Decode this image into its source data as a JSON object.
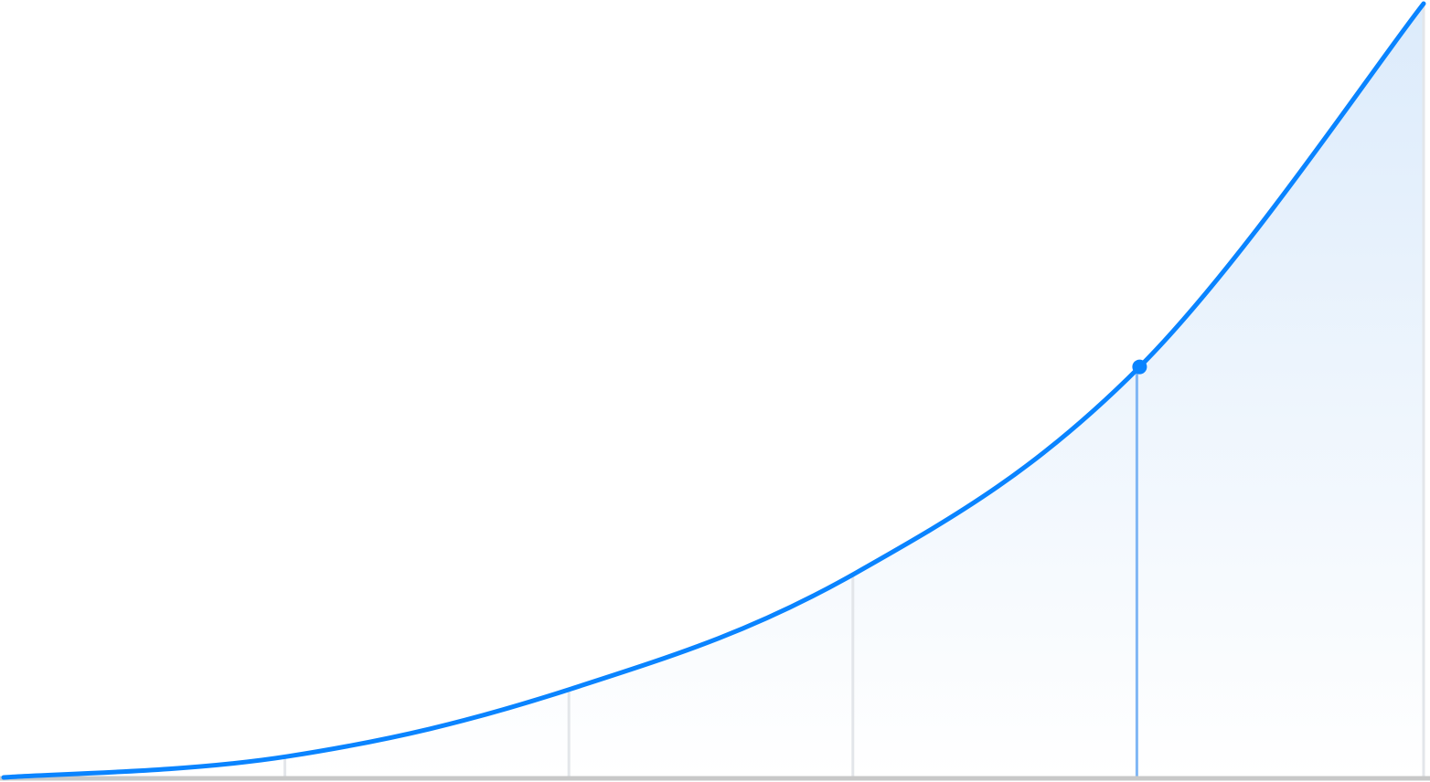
{
  "chart_data": {
    "type": "area",
    "title": "",
    "xlabel": "",
    "ylabel": "",
    "x": [
      0,
      1,
      2,
      3,
      4,
      5
    ],
    "series": [
      {
        "values": [
          0,
          0.0272,
          0.1147,
          0.2641,
          0.5306,
          1.0
        ]
      }
    ],
    "highlight": {
      "x": 4,
      "y": 0.5306
    },
    "xlim": [
      0,
      5
    ],
    "ylim": [
      0,
      1
    ],
    "grid": "vertical",
    "legend": "none",
    "colors": {
      "line": "#0A84FF",
      "fill_top": "#DCEBFB",
      "fill_bottom": "#FFFFFF",
      "grid": "#E3E6EA",
      "highlight_line": "#7FB6F5",
      "baseline": "#C8C8C8"
    }
  }
}
